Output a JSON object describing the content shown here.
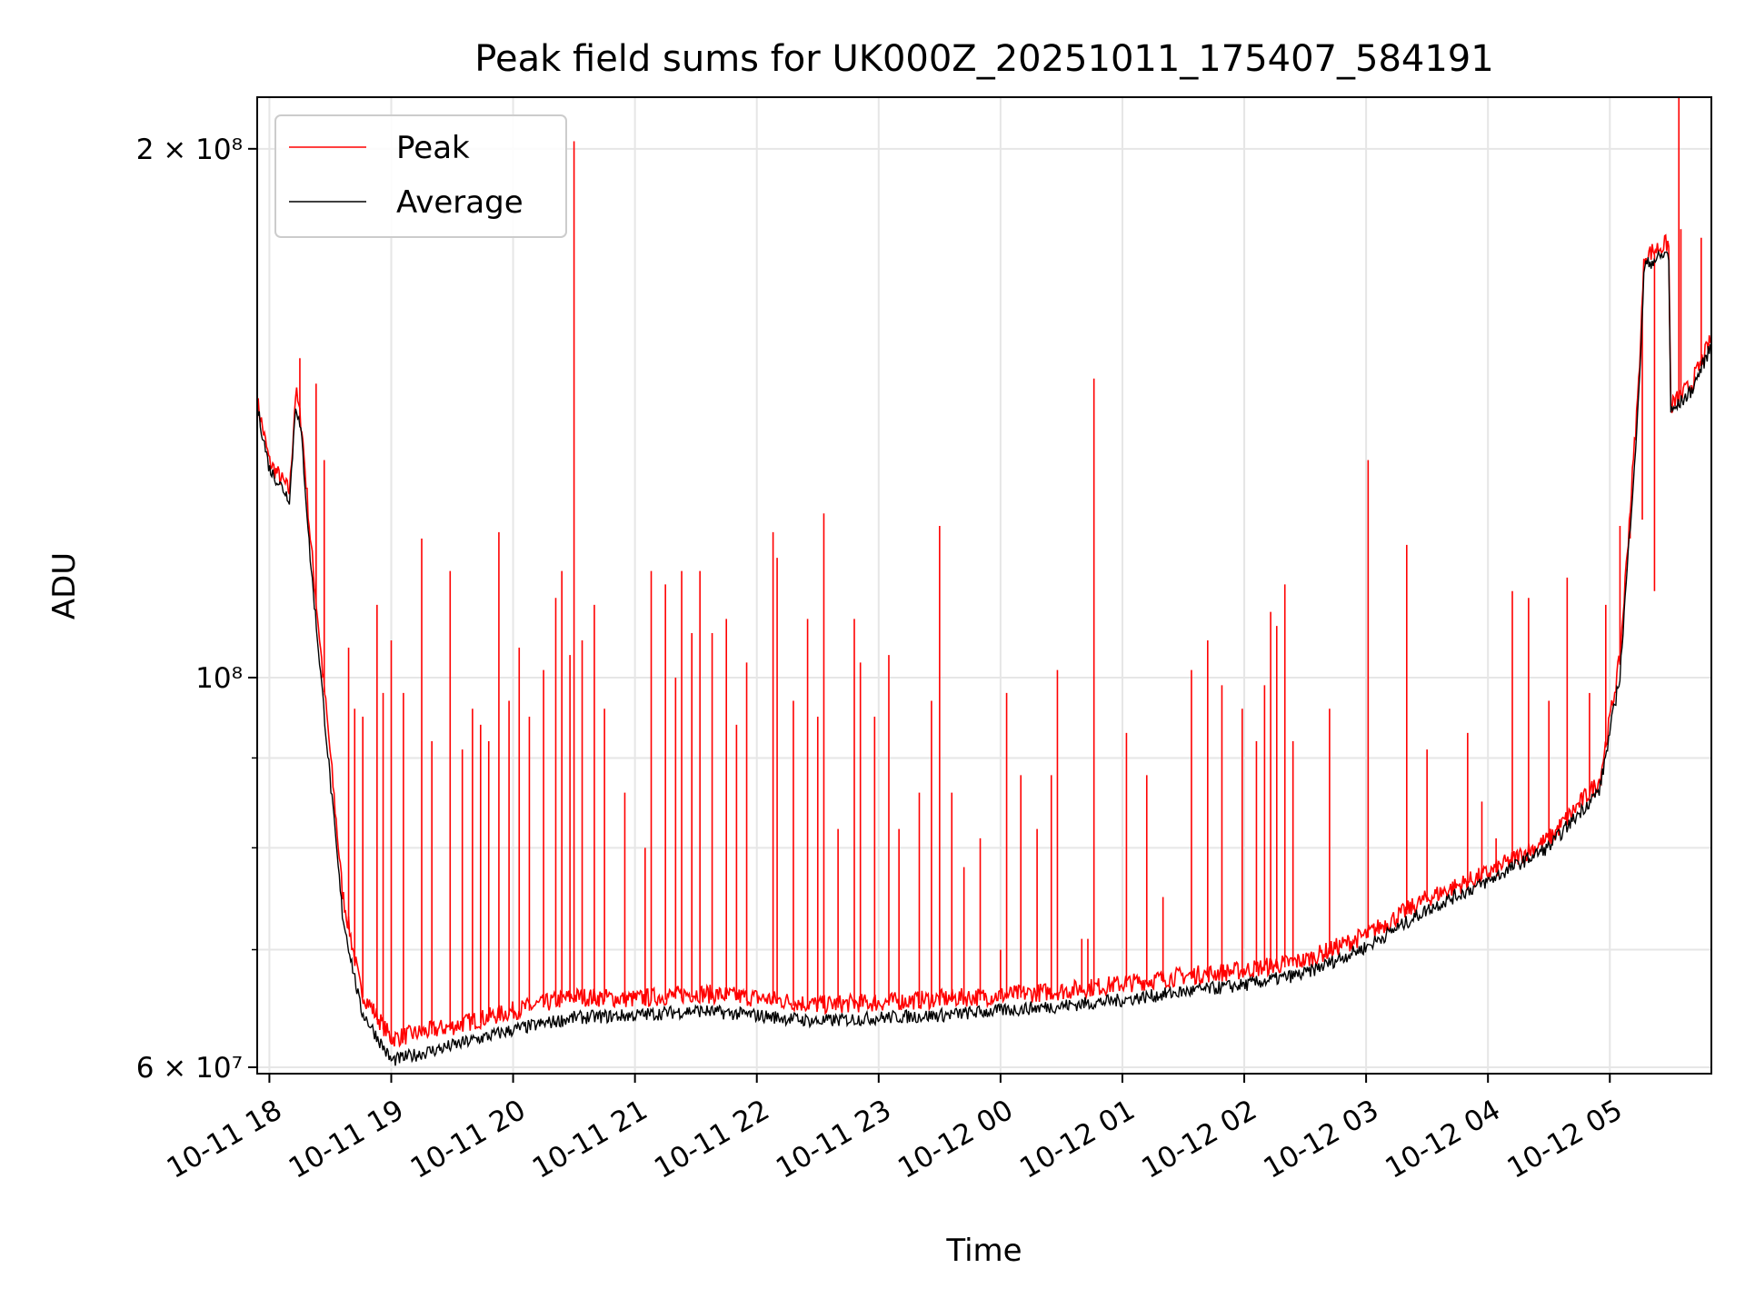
{
  "chart_data": {
    "type": "line",
    "title": "Peak field sums for UK000Z_20251011_175407_584191",
    "xlabel": "Time",
    "ylabel": "ADU",
    "y_scale": "log",
    "ylim": [
      59500000,
      214000000
    ],
    "xlim": [
      "2025-10-11 17:54",
      "2025-10-12 05:50"
    ],
    "x_ticks": [
      {
        "t": "2025-10-11 18:00",
        "label": "10-11 18"
      },
      {
        "t": "2025-10-11 19:00",
        "label": "10-11 19"
      },
      {
        "t": "2025-10-11 20:00",
        "label": "10-11 20"
      },
      {
        "t": "2025-10-11 21:00",
        "label": "10-11 21"
      },
      {
        "t": "2025-10-11 22:00",
        "label": "10-11 22"
      },
      {
        "t": "2025-10-11 23:00",
        "label": "10-11 23"
      },
      {
        "t": "2025-10-12 00:00",
        "label": "10-12 00"
      },
      {
        "t": "2025-10-12 01:00",
        "label": "10-12 01"
      },
      {
        "t": "2025-10-12 02:00",
        "label": "10-12 02"
      },
      {
        "t": "2025-10-12 03:00",
        "label": "10-12 03"
      },
      {
        "t": "2025-10-12 04:00",
        "label": "10-12 04"
      },
      {
        "t": "2025-10-12 05:00",
        "label": "10-12 05"
      }
    ],
    "y_ticks": [
      {
        "v": 60000000,
        "label": "6 × 10⁷"
      },
      {
        "v": 100000000,
        "label": "10⁸"
      },
      {
        "v": 200000000,
        "label": "2 × 10⁸"
      }
    ],
    "y_minor_ticks": [
      70000000,
      80000000,
      90000000
    ],
    "grid": true,
    "legend_position": "upper-left",
    "series": [
      {
        "name": "Peak",
        "color": "#ff0000",
        "baseline": [
          [
            "2025-10-11 17:54",
            143000000
          ],
          [
            "2025-10-11 18:00",
            132000000
          ],
          [
            "2025-10-11 18:10",
            127000000
          ],
          [
            "2025-10-11 18:13",
            145000000
          ],
          [
            "2025-10-11 18:16",
            138000000
          ],
          [
            "2025-10-11 18:20",
            120000000
          ],
          [
            "2025-10-11 18:30",
            90000000
          ],
          [
            "2025-10-11 18:36",
            75000000
          ],
          [
            "2025-10-11 18:45",
            66000000
          ],
          [
            "2025-10-11 19:00",
            62000000
          ],
          [
            "2025-10-11 19:30",
            63000000
          ],
          [
            "2025-10-11 20:00",
            64300000
          ],
          [
            "2025-10-11 20:30",
            65500000
          ],
          [
            "2025-10-11 21:00",
            65300000
          ],
          [
            "2025-10-11 21:30",
            65800000
          ],
          [
            "2025-10-11 22:00",
            65400000
          ],
          [
            "2025-10-11 22:30",
            64800000
          ],
          [
            "2025-10-11 23:00",
            65000000
          ],
          [
            "2025-10-11 23:30",
            65300000
          ],
          [
            "2025-10-12 00:00",
            65600000
          ],
          [
            "2025-10-12 00:30",
            66000000
          ],
          [
            "2025-10-12 01:00",
            66600000
          ],
          [
            "2025-10-12 01:30",
            67300000
          ],
          [
            "2025-10-12 02:00",
            67800000
          ],
          [
            "2025-10-12 02:30",
            68700000
          ],
          [
            "2025-10-12 03:00",
            71000000
          ],
          [
            "2025-10-12 03:30",
            74500000
          ],
          [
            "2025-10-12 04:00",
            77000000
          ],
          [
            "2025-10-12 04:30",
            80500000
          ],
          [
            "2025-10-12 04:55",
            87000000
          ],
          [
            "2025-10-12 05:05",
            102000000
          ],
          [
            "2025-10-12 05:14",
            145000000
          ],
          [
            "2025-10-12 05:17",
            173000000
          ],
          [
            "2025-10-12 05:29",
            176000000
          ],
          [
            "2025-10-12 05:30",
            142000000
          ],
          [
            "2025-10-12 05:40",
            146000000
          ],
          [
            "2025-10-12 05:50",
            155000000
          ]
        ],
        "spikes": [
          [
            "2025-10-11 18:15",
            152000000
          ],
          [
            "2025-10-11 18:23",
            147000000
          ],
          [
            "2025-10-11 18:27",
            133000000
          ],
          [
            "2025-10-11 18:39",
            104000000
          ],
          [
            "2025-10-11 18:42",
            96000000
          ],
          [
            "2025-10-11 18:46",
            95000000
          ],
          [
            "2025-10-11 18:53",
            110000000
          ],
          [
            "2025-10-11 18:56",
            98000000
          ],
          [
            "2025-10-11 19:00",
            105000000
          ],
          [
            "2025-10-11 19:06",
            98000000
          ],
          [
            "2025-10-11 19:15",
            120000000
          ],
          [
            "2025-10-11 19:20",
            92000000
          ],
          [
            "2025-10-11 19:29",
            115000000
          ],
          [
            "2025-10-11 19:35",
            91000000
          ],
          [
            "2025-10-11 19:40",
            96000000
          ],
          [
            "2025-10-11 19:44",
            94000000
          ],
          [
            "2025-10-11 19:48",
            92000000
          ],
          [
            "2025-10-11 19:53",
            121000000
          ],
          [
            "2025-10-11 19:58",
            97000000
          ],
          [
            "2025-10-11 20:03",
            104000000
          ],
          [
            "2025-10-11 20:08",
            95000000
          ],
          [
            "2025-10-11 20:15",
            101000000
          ],
          [
            "2025-10-11 20:21",
            111000000
          ],
          [
            "2025-10-11 20:24",
            115000000
          ],
          [
            "2025-10-11 20:28",
            103000000
          ],
          [
            "2025-10-11 20:30",
            202000000
          ],
          [
            "2025-10-11 20:34",
            105000000
          ],
          [
            "2025-10-11 20:40",
            110000000
          ],
          [
            "2025-10-11 20:45",
            96000000
          ],
          [
            "2025-10-11 20:55",
            86000000
          ],
          [
            "2025-10-11 21:05",
            80000000
          ],
          [
            "2025-10-11 21:08",
            115000000
          ],
          [
            "2025-10-11 21:15",
            113000000
          ],
          [
            "2025-10-11 21:20",
            100000000
          ],
          [
            "2025-10-11 21:23",
            115000000
          ],
          [
            "2025-10-11 21:28",
            106000000
          ],
          [
            "2025-10-11 21:32",
            115000000
          ],
          [
            "2025-10-11 21:38",
            106000000
          ],
          [
            "2025-10-11 21:45",
            108000000
          ],
          [
            "2025-10-11 21:50",
            94000000
          ],
          [
            "2025-10-11 21:55",
            102000000
          ],
          [
            "2025-10-11 22:08",
            121000000
          ],
          [
            "2025-10-11 22:10",
            117000000
          ],
          [
            "2025-10-11 22:18",
            97000000
          ],
          [
            "2025-10-11 22:25",
            108000000
          ],
          [
            "2025-10-11 22:30",
            95000000
          ],
          [
            "2025-10-11 22:33",
            124000000
          ],
          [
            "2025-10-11 22:40",
            82000000
          ],
          [
            "2025-10-11 22:48",
            108000000
          ],
          [
            "2025-10-11 22:51",
            102000000
          ],
          [
            "2025-10-11 22:58",
            95000000
          ],
          [
            "2025-10-11 23:05",
            103000000
          ],
          [
            "2025-10-11 23:10",
            82000000
          ],
          [
            "2025-10-11 23:20",
            86000000
          ],
          [
            "2025-10-11 23:26",
            97000000
          ],
          [
            "2025-10-11 23:30",
            122000000
          ],
          [
            "2025-10-11 23:36",
            86000000
          ],
          [
            "2025-10-11 23:42",
            78000000
          ],
          [
            "2025-10-11 23:50",
            81000000
          ],
          [
            "2025-10-11 24:00",
            70000000
          ],
          [
            "2025-10-12 00:03",
            98000000
          ],
          [
            "2025-10-12 00:10",
            88000000
          ],
          [
            "2025-10-12 00:18",
            82000000
          ],
          [
            "2025-10-12 00:25",
            88000000
          ],
          [
            "2025-10-12 00:28",
            101000000
          ],
          [
            "2025-10-12 00:40",
            71000000
          ],
          [
            "2025-10-12 00:43",
            71000000
          ],
          [
            "2025-10-12 00:46",
            148000000
          ],
          [
            "2025-10-12 01:02",
            93000000
          ],
          [
            "2025-10-12 01:12",
            88000000
          ],
          [
            "2025-10-12 01:20",
            75000000
          ],
          [
            "2025-10-12 01:34",
            101000000
          ],
          [
            "2025-10-12 01:42",
            105000000
          ],
          [
            "2025-10-12 01:49",
            99000000
          ],
          [
            "2025-10-12 01:59",
            96000000
          ],
          [
            "2025-10-12 02:06",
            92000000
          ],
          [
            "2025-10-12 02:10",
            99000000
          ],
          [
            "2025-10-12 02:13",
            109000000
          ],
          [
            "2025-10-12 02:16",
            107000000
          ],
          [
            "2025-10-12 02:20",
            113000000
          ],
          [
            "2025-10-12 02:24",
            92000000
          ],
          [
            "2025-10-12 02:42",
            96000000
          ],
          [
            "2025-10-12 03:01",
            133000000
          ],
          [
            "2025-10-12 03:20",
            119000000
          ],
          [
            "2025-10-12 03:30",
            91000000
          ],
          [
            "2025-10-12 03:50",
            93000000
          ],
          [
            "2025-10-12 03:57",
            85000000
          ],
          [
            "2025-10-12 04:04",
            81000000
          ],
          [
            "2025-10-12 04:12",
            112000000
          ],
          [
            "2025-10-12 04:20",
            111000000
          ],
          [
            "2025-10-12 04:30",
            97000000
          ],
          [
            "2025-10-12 04:39",
            114000000
          ],
          [
            "2025-10-12 04:50",
            98000000
          ],
          [
            "2025-10-12 04:58",
            110000000
          ],
          [
            "2025-10-12 05:05",
            122000000
          ],
          [
            "2025-10-12 05:10",
            120000000
          ],
          [
            "2025-10-12 05:16",
            123000000
          ],
          [
            "2025-10-12 05:22",
            112000000
          ],
          [
            "2025-10-12 05:34",
            214000000
          ],
          [
            "2025-10-12 05:35",
            180000000
          ],
          [
            "2025-10-12 05:45",
            178000000
          ]
        ]
      },
      {
        "name": "Average",
        "color": "#000000",
        "baseline": [
          [
            "2025-10-11 17:54",
            142000000
          ],
          [
            "2025-10-11 18:00",
            131000000
          ],
          [
            "2025-10-11 18:10",
            126000000
          ],
          [
            "2025-10-11 18:13",
            143000000
          ],
          [
            "2025-10-11 18:16",
            136000000
          ],
          [
            "2025-10-11 18:20",
            117000000
          ],
          [
            "2025-10-11 18:30",
            87000000
          ],
          [
            "2025-10-11 18:36",
            73000000
          ],
          [
            "2025-10-11 18:45",
            64500000
          ],
          [
            "2025-10-11 19:00",
            60300000
          ],
          [
            "2025-10-11 19:30",
            61500000
          ],
          [
            "2025-10-11 20:00",
            62800000
          ],
          [
            "2025-10-11 20:30",
            63800000
          ],
          [
            "2025-10-11 21:00",
            64000000
          ],
          [
            "2025-10-11 21:30",
            64400000
          ],
          [
            "2025-10-11 22:00",
            64000000
          ],
          [
            "2025-10-11 22:30",
            63500000
          ],
          [
            "2025-10-11 23:00",
            63800000
          ],
          [
            "2025-10-11 23:30",
            64000000
          ],
          [
            "2025-10-12 00:00",
            64400000
          ],
          [
            "2025-10-12 00:30",
            64800000
          ],
          [
            "2025-10-12 01:00",
            65300000
          ],
          [
            "2025-10-12 01:30",
            66000000
          ],
          [
            "2025-10-12 02:00",
            66600000
          ],
          [
            "2025-10-12 02:30",
            67600000
          ],
          [
            "2025-10-12 03:00",
            70000000
          ],
          [
            "2025-10-12 03:30",
            73500000
          ],
          [
            "2025-10-12 04:00",
            76300000
          ],
          [
            "2025-10-12 04:30",
            79800000
          ],
          [
            "2025-10-12 04:55",
            86000000
          ],
          [
            "2025-10-12 05:05",
            100000000
          ],
          [
            "2025-10-12 05:14",
            142000000
          ],
          [
            "2025-10-12 05:17",
            171000000
          ],
          [
            "2025-10-12 05:29",
            174000000
          ],
          [
            "2025-10-12 05:30",
            141000000
          ],
          [
            "2025-10-12 05:40",
            145000000
          ],
          [
            "2025-10-12 05:50",
            154000000
          ]
        ]
      }
    ]
  }
}
